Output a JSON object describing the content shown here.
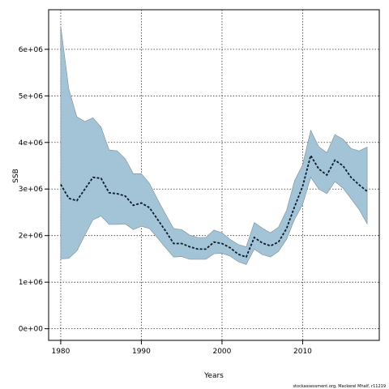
{
  "chart_data": {
    "type": "area",
    "xlabel": "Years",
    "ylabel": "SSB",
    "footnote": "stockassessment.org, Mackerel Mhalf, r11219",
    "xlim": [
      1978.5,
      2019.5
    ],
    "ylim": [
      -250000,
      6850000
    ],
    "grid": true,
    "x_ticks": [
      1980,
      1990,
      2000,
      2010
    ],
    "x_tick_labels": [
      "1980",
      "1990",
      "2000",
      "2010"
    ],
    "y_ticks": [
      0,
      1000000,
      2000000,
      3000000,
      4000000,
      5000000,
      6000000
    ],
    "y_tick_labels": [
      "0e+00",
      "1e+06",
      "2e+06",
      "3e+06",
      "4e+06",
      "5e+06",
      "6e+06"
    ],
    "x": [
      1980,
      1981,
      1982,
      1983,
      1984,
      1985,
      1986,
      1987,
      1988,
      1989,
      1990,
      1991,
      1992,
      1993,
      1994,
      1995,
      1996,
      1997,
      1998,
      1999,
      2000,
      2001,
      2002,
      2003,
      2004,
      2005,
      2006,
      2007,
      2008,
      2009,
      2010,
      2011,
      2012,
      2013,
      2014,
      2015,
      2016,
      2017,
      2018
    ],
    "series": [
      {
        "role": "estimate",
        "values": [
          3100000,
          2800000,
          2750000,
          3000000,
          3250000,
          3230000,
          2920000,
          2900000,
          2850000,
          2650000,
          2700000,
          2600000,
          2350000,
          2100000,
          1830000,
          1830000,
          1760000,
          1710000,
          1710000,
          1860000,
          1830000,
          1740000,
          1600000,
          1540000,
          1960000,
          1840000,
          1780000,
          1860000,
          2150000,
          2620000,
          3060000,
          3720000,
          3430000,
          3300000,
          3620000,
          3500000,
          3250000,
          3090000,
          2950000
        ]
      },
      {
        "role": "upper",
        "values": [
          6500000,
          5150000,
          4550000,
          4450000,
          4530000,
          4330000,
          3840000,
          3820000,
          3650000,
          3330000,
          3330000,
          3120000,
          2780000,
          2460000,
          2150000,
          2130000,
          2010000,
          1960000,
          1960000,
          2120000,
          2060000,
          1920000,
          1810000,
          1760000,
          2280000,
          2160000,
          2060000,
          2180000,
          2540000,
          3180000,
          3520000,
          4260000,
          3910000,
          3780000,
          4170000,
          4070000,
          3870000,
          3820000,
          3900000
        ]
      },
      {
        "role": "lower",
        "values": [
          1500000,
          1510000,
          1670000,
          2010000,
          2340000,
          2420000,
          2240000,
          2240000,
          2250000,
          2130000,
          2200000,
          2150000,
          1950000,
          1740000,
          1540000,
          1550000,
          1490000,
          1490000,
          1490000,
          1610000,
          1620000,
          1560000,
          1440000,
          1380000,
          1710000,
          1590000,
          1540000,
          1660000,
          1920000,
          2350000,
          2670000,
          3250000,
          3000000,
          2900000,
          3160000,
          3020000,
          2790000,
          2560000,
          2250000
        ]
      }
    ]
  }
}
